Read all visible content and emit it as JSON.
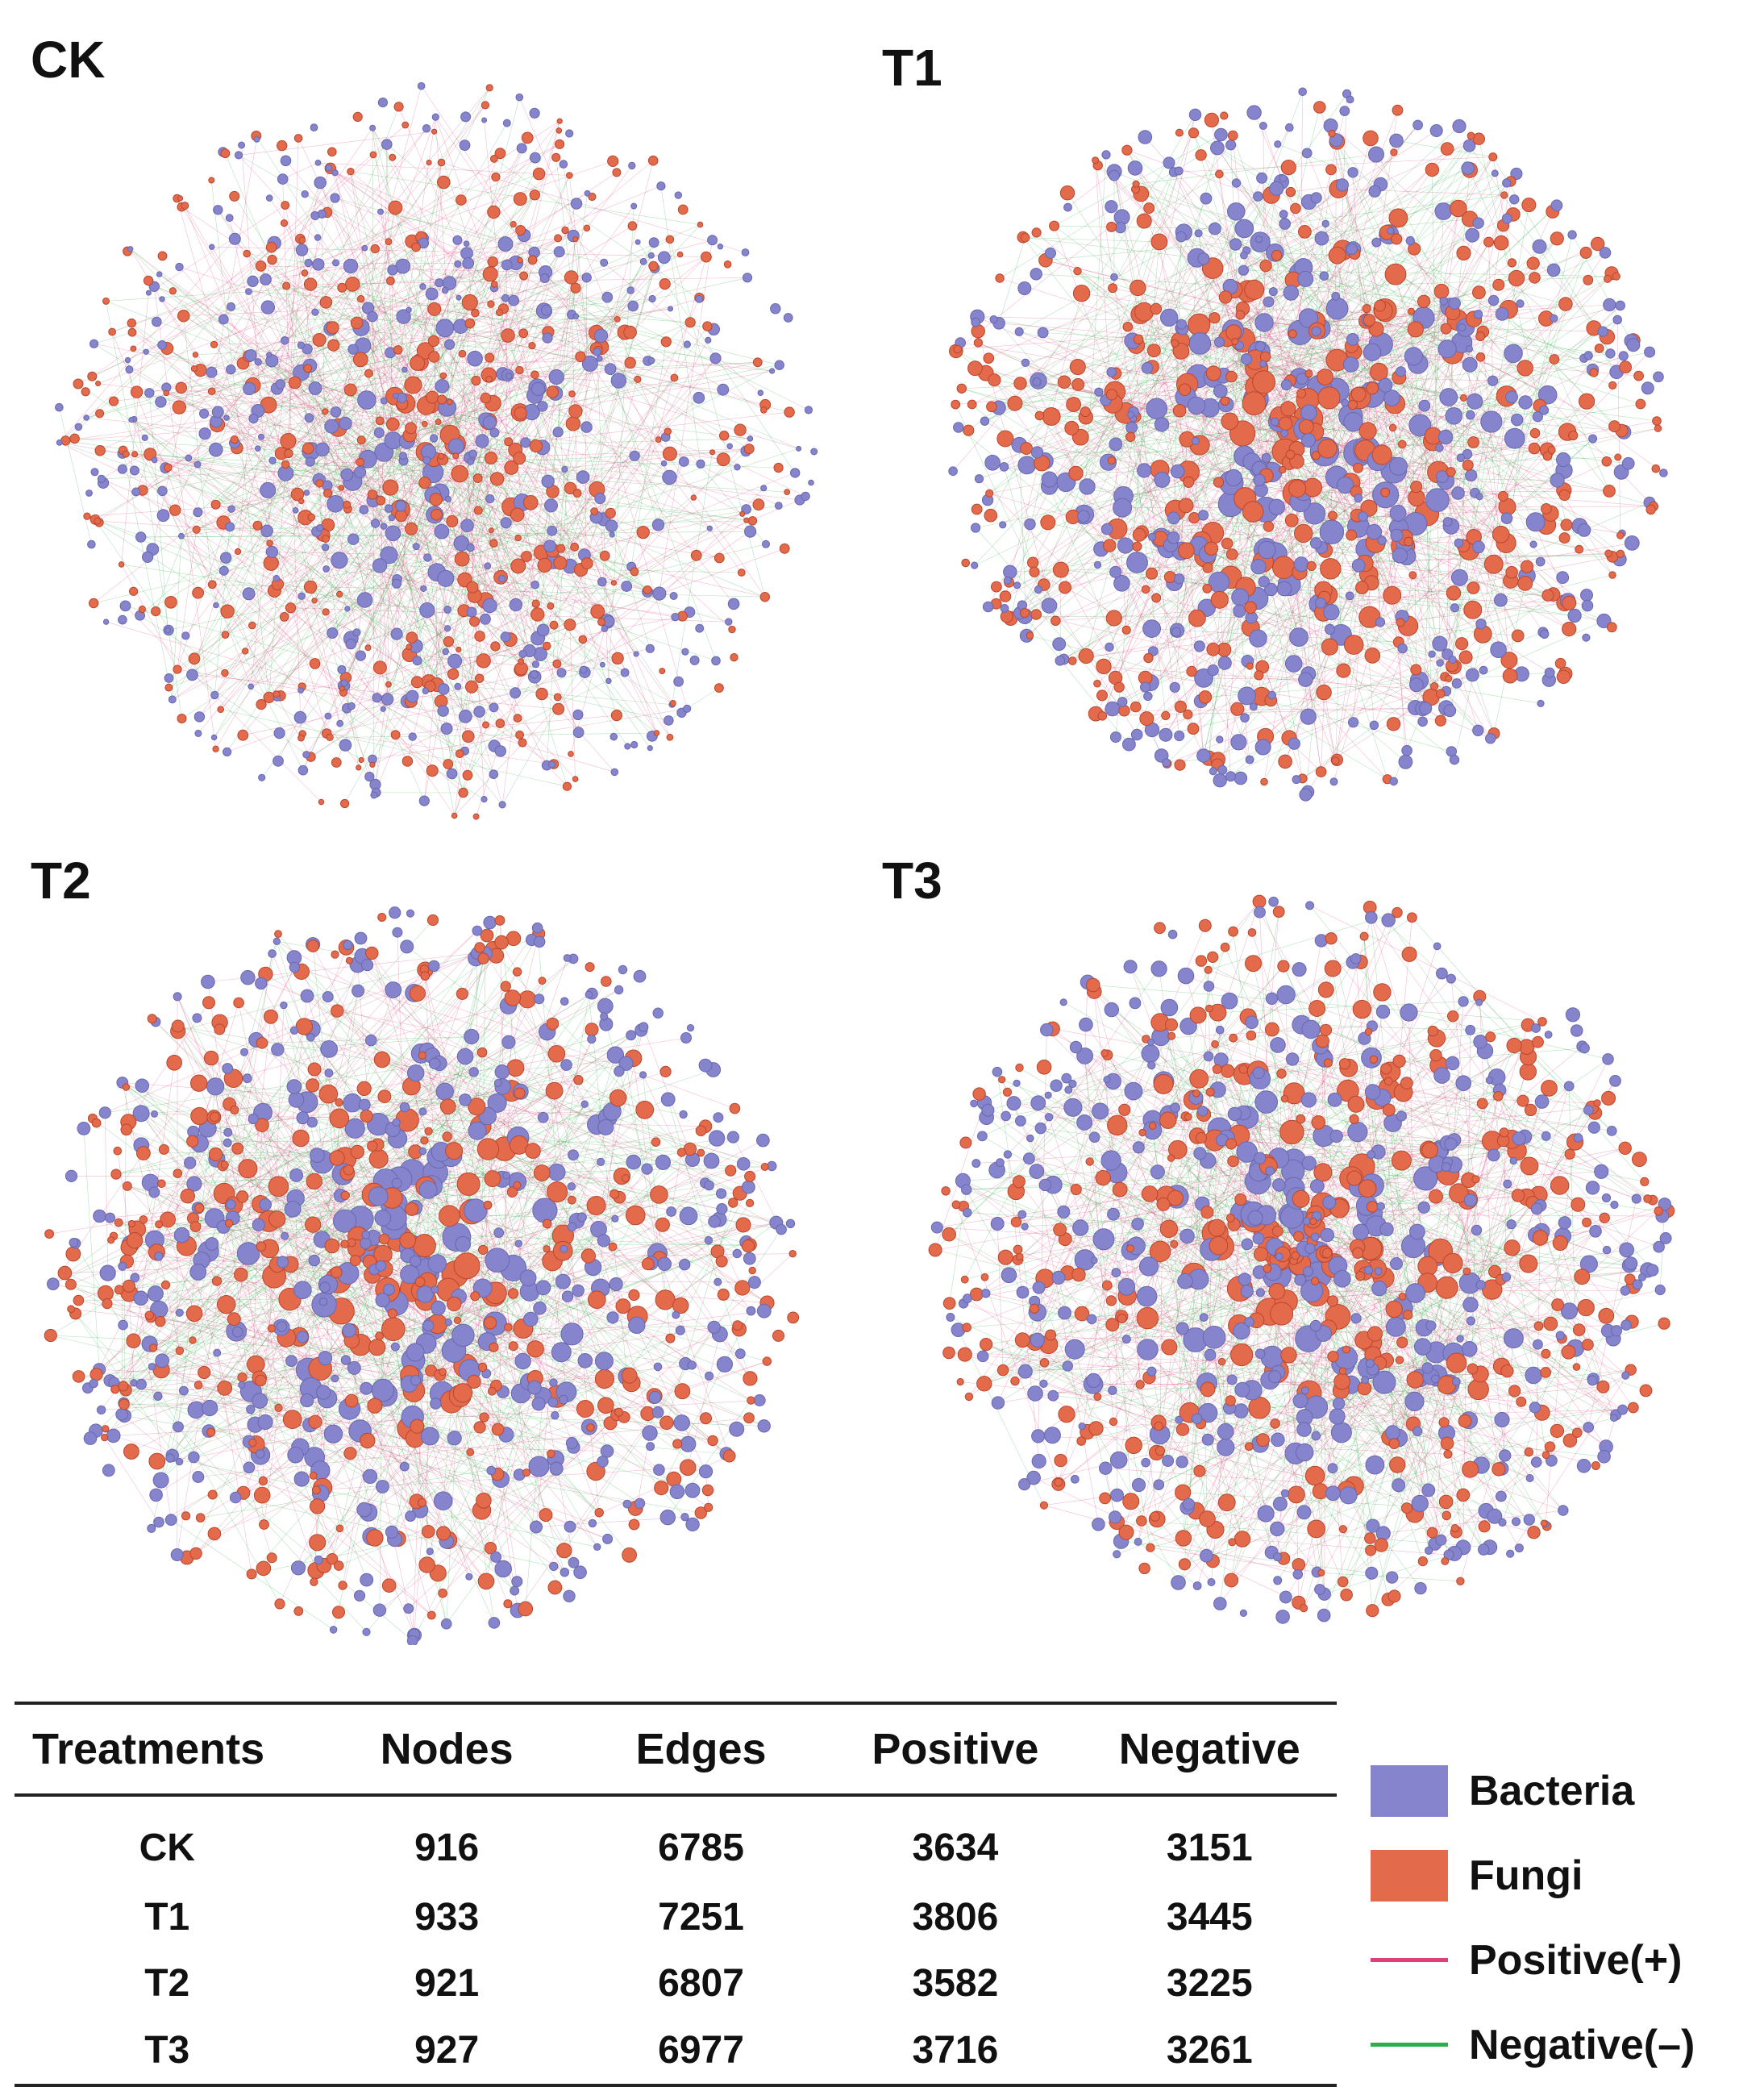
{
  "colors": {
    "bacteria": "#8584cc",
    "fungi": "#e46a4c",
    "positive": "#e0407a",
    "negative": "#2fae49"
  },
  "networks": [
    {
      "label": "CK",
      "nodes": 916,
      "edges": 6785,
      "positive": 3634,
      "negative": 3151
    },
    {
      "label": "T1",
      "nodes": 933,
      "edges": 7251,
      "positive": 3806,
      "negative": 3445
    },
    {
      "label": "T2",
      "nodes": 921,
      "edges": 6807,
      "positive": 3582,
      "negative": 3225
    },
    {
      "label": "T3",
      "nodes": 927,
      "edges": 6977,
      "positive": 3716,
      "negative": 3261
    }
  ],
  "table": {
    "headers": [
      "Treatments",
      "Nodes",
      "Edges",
      "Positive",
      "Negative"
    ],
    "rows": [
      [
        "CK",
        "916",
        "6785",
        "3634",
        "3151"
      ],
      [
        "T1",
        "933",
        "7251",
        "3806",
        "3445"
      ],
      [
        "T2",
        "921",
        "6807",
        "3582",
        "3225"
      ],
      [
        "T3",
        "927",
        "6977",
        "3716",
        "3261"
      ]
    ]
  },
  "legend": {
    "bacteria": "Bacteria",
    "fungi": "Fungi",
    "positive": "Positive(+)",
    "negative": "Negative(–)"
  }
}
